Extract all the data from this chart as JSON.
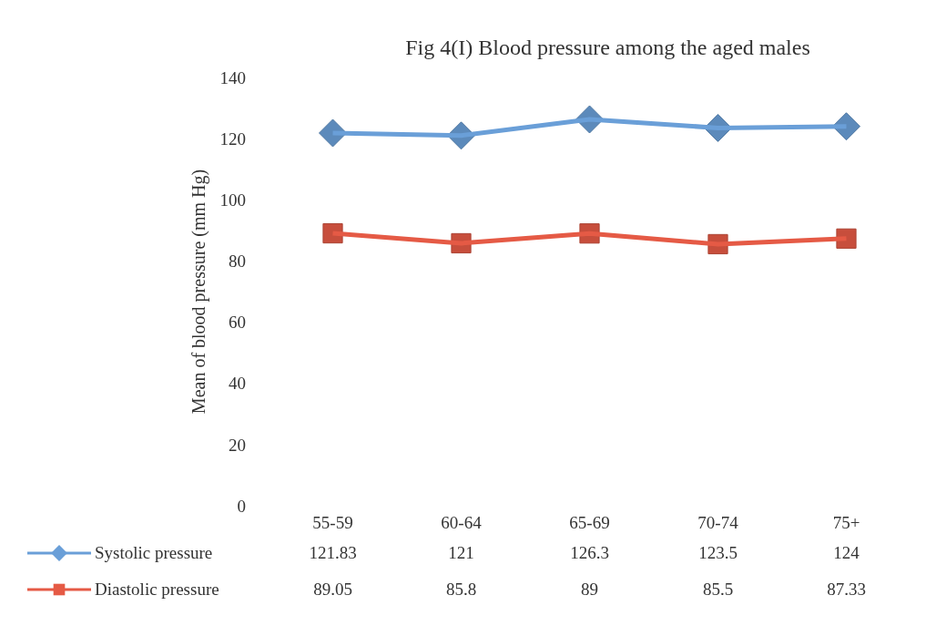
{
  "chart_data": {
    "type": "line",
    "title": "Fig   4(I)  Blood pressure among the aged males",
    "ylabel": "Mean of  blood pressure (mm Hg)",
    "categories": [
      "55-59",
      "60-64",
      "65-69",
      "70-74",
      "75+"
    ],
    "series": [
      {
        "name": "Systolic pressure",
        "color": "#6a9fd8",
        "marker": "diamond",
        "values": [
          121.83,
          121,
          126.3,
          123.5,
          124
        ]
      },
      {
        "name": "Diastolic pressure",
        "color": "#e55a45",
        "marker": "square",
        "values": [
          89.05,
          85.8,
          89,
          85.5,
          87.33
        ]
      }
    ],
    "ylim": [
      0,
      140
    ],
    "yticks": [
      0,
      20,
      40,
      60,
      80,
      100,
      120,
      140
    ],
    "data_labels": true,
    "legend": "bottom",
    "grid": false
  }
}
